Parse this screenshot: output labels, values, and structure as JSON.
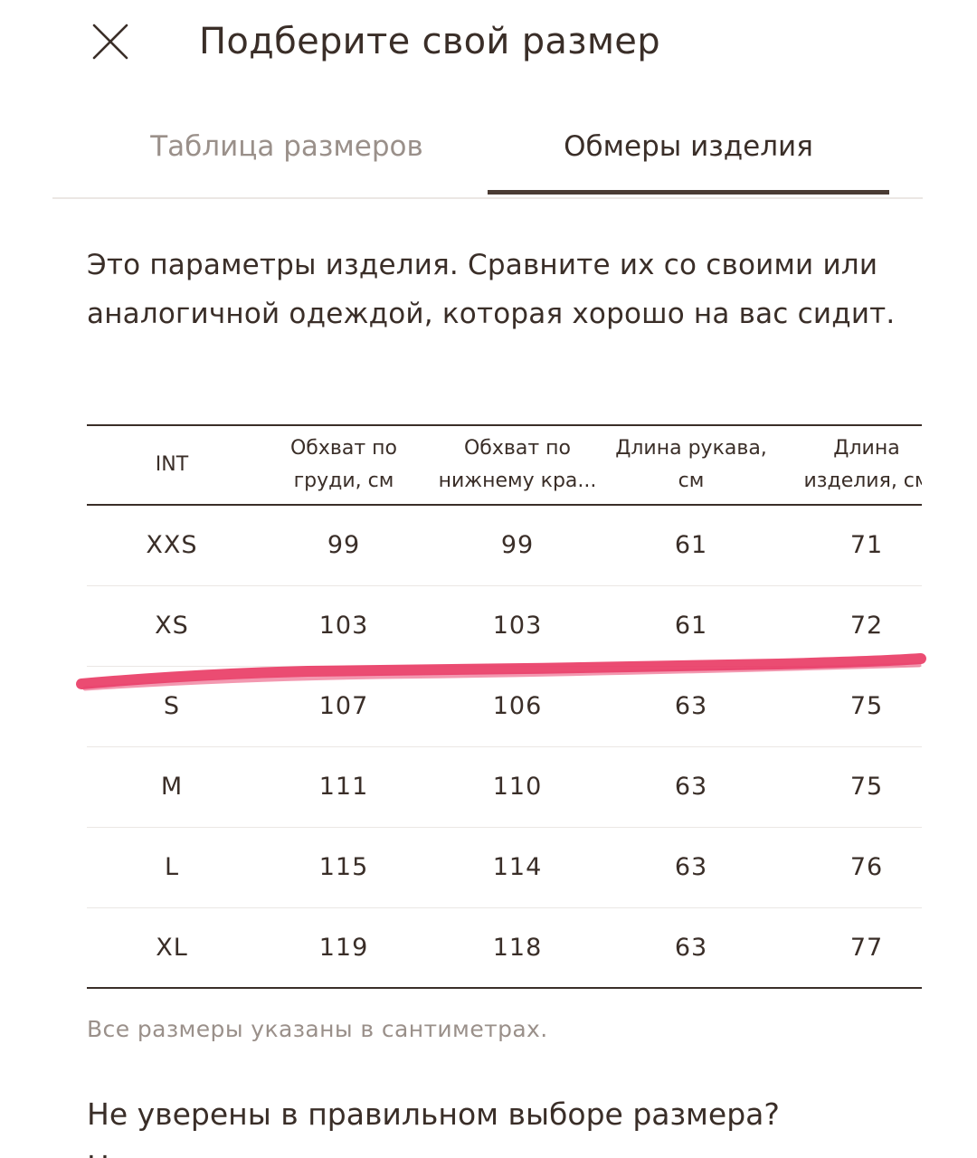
{
  "header": {
    "title": "Подберите свой размер"
  },
  "tabs": [
    {
      "label": "Таблица размеров",
      "active": false
    },
    {
      "label": "Обмеры изделия",
      "active": true
    }
  ],
  "description": "Это параметры изделия. Сравните их со своими или аналогичной одеждой, которая хорошо на вас сидит.",
  "table": {
    "headers": [
      [
        "INT"
      ],
      [
        "Обхват по",
        "груди, см"
      ],
      [
        "Обхват по",
        "нижнему кра..."
      ],
      [
        "Длина рукава,",
        "см"
      ],
      [
        "Длина",
        "изделия, см"
      ]
    ],
    "rows": [
      [
        "XXS",
        "99",
        "99",
        "61",
        "71"
      ],
      [
        "XS",
        "103",
        "103",
        "61",
        "72"
      ],
      [
        "S",
        "107",
        "106",
        "63",
        "75"
      ],
      [
        "M",
        "111",
        "110",
        "63",
        "75"
      ],
      [
        "L",
        "115",
        "114",
        "63",
        "76"
      ],
      [
        "XL",
        "119",
        "118",
        "63",
        "77"
      ]
    ]
  },
  "note": "Все размеры указаны в сантиметрах.",
  "question": "Не уверены в правильном выборе размера?",
  "cut_text": "Н",
  "colors": {
    "text": "#3a2e28",
    "muted": "#9a908a",
    "divider": "#ebe7e4",
    "marker": "#e8335f"
  },
  "icons": {
    "close": "close-icon"
  }
}
